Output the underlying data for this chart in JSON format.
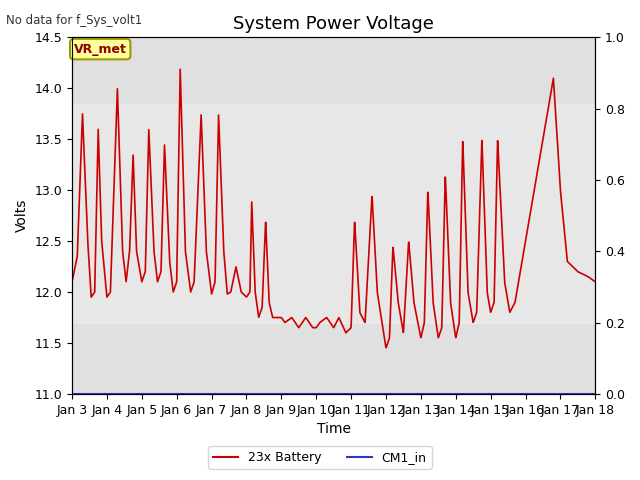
{
  "title": "System Power Voltage",
  "no_data_label": "No data for f_Sys_volt1",
  "vr_met_label": "VR_met",
  "ylabel_left": "Volts",
  "xlabel": "Time",
  "ylim_left": [
    11.0,
    14.5
  ],
  "ylim_right": [
    0.0,
    1.0
  ],
  "yticks_left": [
    11.0,
    11.5,
    12.0,
    12.5,
    13.0,
    13.5,
    14.0,
    14.5
  ],
  "yticks_right": [
    0.0,
    0.2,
    0.4,
    0.6,
    0.8,
    1.0
  ],
  "xticklabels": [
    "Jan 3",
    "Jan 4",
    "Jan 5",
    "Jan 6",
    "Jan 7",
    "Jan 8",
    "Jan 9",
    "Jan 10",
    "Jan 11",
    "Jan 12",
    "Jan 13",
    "Jan 14",
    "Jan 15",
    "Jan 16",
    "Jan 17",
    "Jan 18"
  ],
  "line_color_battery": "#cc0000",
  "line_color_cm1": "#0000cc",
  "legend_battery": "23x Battery",
  "legend_cm1": "CM1_in",
  "background_color": "#ffffff",
  "plot_bg_color": "#e8e8e8",
  "gray_band_color": "#d8d8d8",
  "title_fontsize": 14,
  "label_fontsize": 10,
  "tick_fontsize": 9,
  "vr_met_bg": "#ffffcc",
  "vr_met_border": "#888844"
}
